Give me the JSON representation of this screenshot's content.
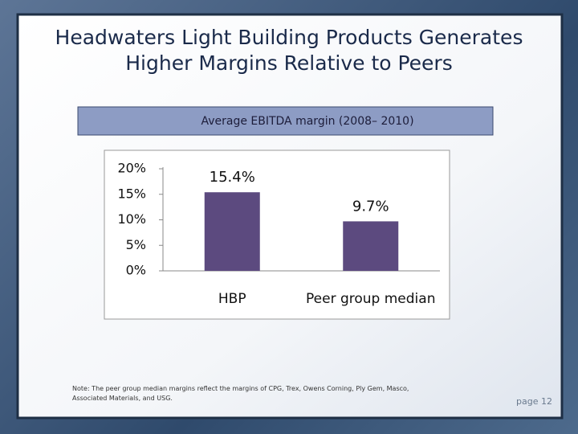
{
  "title": "Headwaters Light Building Products  Generates Higher Margins Relative to Peers",
  "note": "Note: The peer group median margins reflect the margins of CPG, Trex, Owens Corning, Ply Gem, Masco, Associated Materials, and USG.",
  "page": "page 12",
  "chart_data": {
    "type": "bar",
    "subtitle": "Average EBITDA margin (2008– 2010)",
    "categories": [
      "HBP",
      "Peer group median"
    ],
    "values": [
      15.4,
      9.7
    ],
    "value_labels": [
      "15.4%",
      "9.7%"
    ],
    "color": "#5c4a7f",
    "ylim": [
      0,
      20
    ],
    "yticks": [
      {
        "value": 0,
        "label": "0%"
      },
      {
        "value": 5,
        "label": "5%"
      },
      {
        "value": 10,
        "label": "10%"
      },
      {
        "value": 15,
        "label": "15%"
      },
      {
        "value": 20,
        "label": "20%"
      }
    ],
    "grid": false
  }
}
